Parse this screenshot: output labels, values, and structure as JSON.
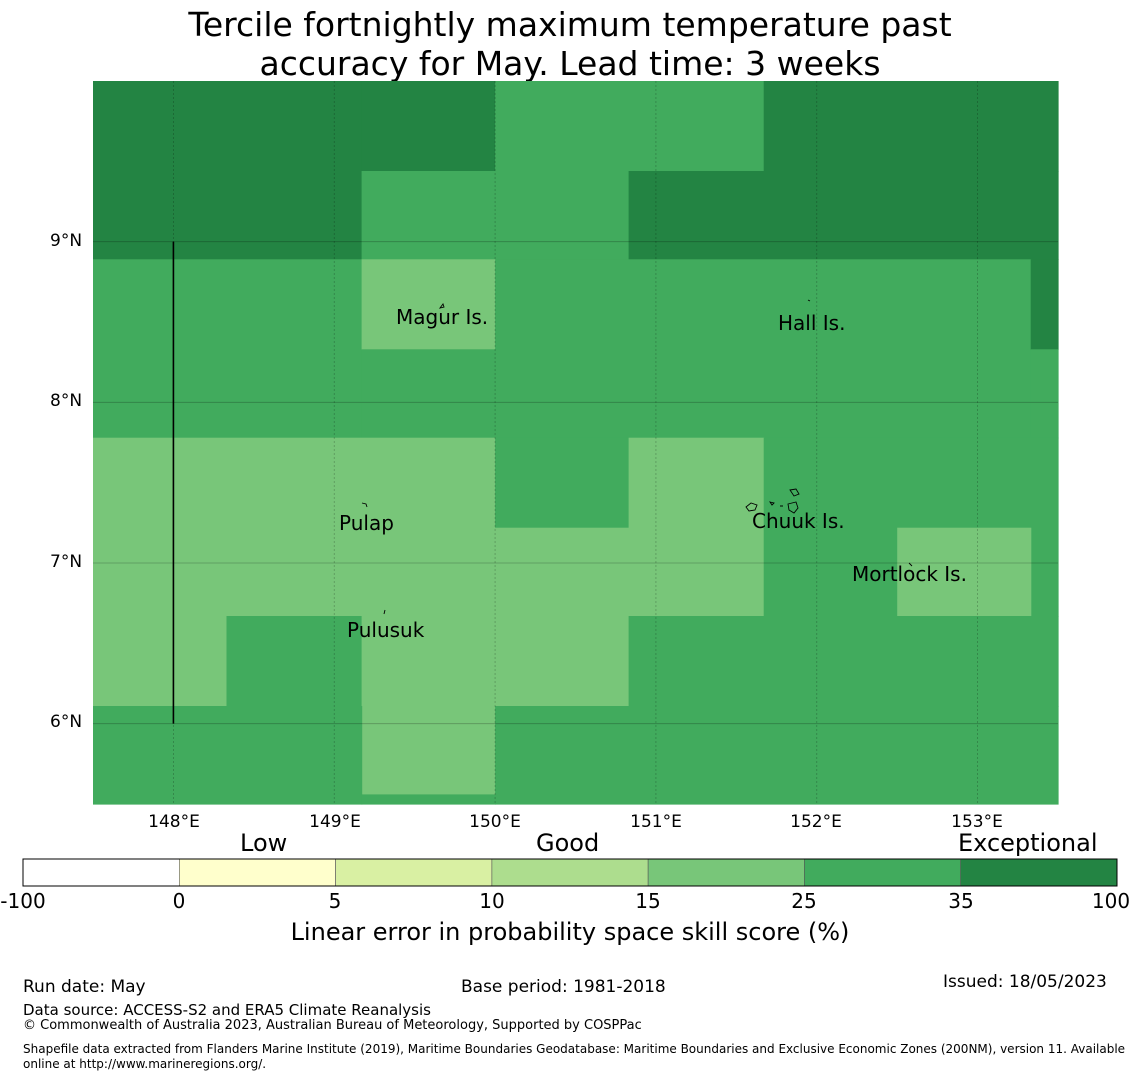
{
  "title": {
    "line1": "Tercile fortnightly maximum temperature past",
    "line2": "accuracy for May. Lead time: 3 weeks"
  },
  "map": {
    "lat_labels": [
      "9°N",
      "8°N",
      "7°N",
      "6°N"
    ],
    "lon_labels": [
      "148°E",
      "149°E",
      "150°E",
      "151°E",
      "152°E",
      "153°E"
    ],
    "places": [
      "Magur Is.",
      "Hall Is.",
      "Pulap",
      "Chuuk Is.",
      "Mortlock Is.",
      "Pulusuk"
    ],
    "grid_lat": [
      9,
      8,
      7,
      6
    ],
    "grid_lon": [
      148,
      149,
      150,
      151,
      152,
      153
    ],
    "cells": [
      {
        "lon": [
          147.5,
          149.17
        ],
        "lat": [
          8.89,
          10.0
        ],
        "class": 6
      },
      {
        "lon": [
          149.17,
          150.0
        ],
        "lat": [
          9.44,
          10.0
        ],
        "class": 6
      },
      {
        "lon": [
          150.0,
          151.67
        ],
        "lat": [
          9.44,
          10.0
        ],
        "class": 5
      },
      {
        "lon": [
          151.67,
          153.5
        ],
        "lat": [
          9.44,
          10.0
        ],
        "class": 6
      },
      {
        "lon": [
          149.17,
          150.0
        ],
        "lat": [
          8.89,
          9.44
        ],
        "class": 5
      },
      {
        "lon": [
          150.0,
          150.83
        ],
        "lat": [
          8.89,
          9.44
        ],
        "class": 5
      },
      {
        "lon": [
          150.83,
          153.5
        ],
        "lat": [
          8.89,
          9.44
        ],
        "class": 6
      },
      {
        "lon": [
          147.5,
          149.17
        ],
        "lat": [
          7.78,
          8.89
        ],
        "class": 5
      },
      {
        "lon": [
          149.17,
          150.0
        ],
        "lat": [
          8.33,
          8.89
        ],
        "class": 4
      },
      {
        "lon": [
          149.17,
          150.0
        ],
        "lat": [
          7.78,
          8.33
        ],
        "class": 5
      },
      {
        "lon": [
          150.0,
          153.33
        ],
        "lat": [
          7.78,
          8.89
        ],
        "class": 5
      },
      {
        "lon": [
          153.33,
          153.5
        ],
        "lat": [
          8.33,
          8.89
        ],
        "class": 6
      },
      {
        "lon": [
          153.33,
          153.5
        ],
        "lat": [
          7.78,
          8.33
        ],
        "class": 5
      },
      {
        "lon": [
          147.5,
          150.0
        ],
        "lat": [
          6.67,
          7.78
        ],
        "class": 4
      },
      {
        "lon": [
          150.0,
          150.83
        ],
        "lat": [
          7.22,
          7.78
        ],
        "class": 5
      },
      {
        "lon": [
          150.0,
          150.83
        ],
        "lat": [
          6.67,
          7.22
        ],
        "class": 4
      },
      {
        "lon": [
          150.83,
          151.67
        ],
        "lat": [
          6.67,
          7.78
        ],
        "class": 4
      },
      {
        "lon": [
          151.67,
          153.5
        ],
        "lat": [
          6.67,
          7.78
        ],
        "class": 5
      },
      {
        "lon": [
          152.5,
          153.33
        ],
        "lat": [
          6.67,
          7.22
        ],
        "class": 4
      },
      {
        "lon": [
          147.5,
          148.33
        ],
        "lat": [
          6.11,
          6.67
        ],
        "class": 4
      },
      {
        "lon": [
          148.33,
          149.17
        ],
        "lat": [
          6.11,
          6.67
        ],
        "class": 5
      },
      {
        "lon": [
          149.17,
          150.0
        ],
        "lat": [
          5.56,
          6.67
        ],
        "class": 4
      },
      {
        "lon": [
          150.0,
          150.83
        ],
        "lat": [
          6.11,
          6.67
        ],
        "class": 4
      },
      {
        "lon": [
          150.83,
          153.5
        ],
        "lat": [
          6.11,
          6.67
        ],
        "class": 5
      },
      {
        "lon": [
          147.5,
          149.17
        ],
        "lat": [
          5.5,
          6.11
        ],
        "class": 5
      },
      {
        "lon": [
          149.17,
          150.0
        ],
        "lat": [
          5.5,
          5.56
        ],
        "class": 5
      },
      {
        "lon": [
          150.0,
          153.5
        ],
        "lat": [
          5.5,
          6.11
        ],
        "class": 5
      }
    ],
    "boundary_line": {
      "lon": 148.0,
      "lat": [
        6.0,
        9.0
      ]
    }
  },
  "legend": {
    "categories": [
      "Low",
      "Good",
      "Exceptional"
    ],
    "ticks": [
      "-100",
      "0",
      "5",
      "10",
      "15",
      "25",
      "35",
      "100"
    ],
    "colors": [
      "#ffffff",
      "#ffffcc",
      "#d9f0a3",
      "#addd8e",
      "#78c679",
      "#41ab5d",
      "#238443"
    ],
    "label": "Linear error in probability space skill score (%)"
  },
  "footer": {
    "run_date": "Run date: May",
    "base_period": "Base period: 1981-2018",
    "issued": "Issued: 18/05/2023",
    "data_source": "Data source: ACCESS-S2 and ERA5 Climate Reanalysis",
    "copyright": "© Commonwealth of Australia 2023, Australian Bureau of Meteorology, Supported by COSPPac",
    "shapefile_line1": "Shapefile data extracted from Flanders Marine Institute (2019), Maritime Boundaries Geodatabase: Maritime Boundaries and Exclusive Economic Zones (200NM), version 11. Available",
    "shapefile_line2": "online at http://www.marineregions.org/."
  }
}
